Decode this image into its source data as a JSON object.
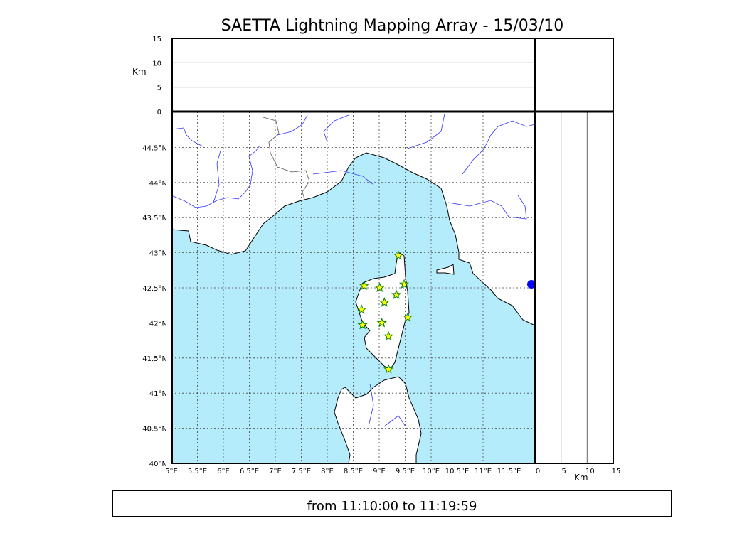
{
  "title": "SAETTA Lightning Mapping Array - 15/03/10",
  "footer": "from 11:10:00 to 11:19:59",
  "colors": {
    "sea": "#b5ecfc",
    "land": "#ffffff",
    "rivers": "#3333ff",
    "borders": "#555555",
    "star_fill": "#ffff00",
    "star_edge": "#008000",
    "extra_point": "#0000ff"
  },
  "chart_data": {
    "type": "scatter",
    "map": {
      "lon_range": [
        5,
        12
      ],
      "lat_range": [
        40,
        45
      ],
      "lon_ticks": [
        "5°E",
        "5.5°E",
        "6°E",
        "6.5°E",
        "7°E",
        "7.5°E",
        "8°E",
        "8.5°E",
        "9°E",
        "9.5°E",
        "10°E",
        "10.5°E",
        "11°E",
        "11.5°E"
      ],
      "lat_ticks": [
        "40°N",
        "40.5°N",
        "41°N",
        "41.5°N",
        "42°N",
        "42.5°N",
        "43°N",
        "43.5°N",
        "44°N",
        "44.5°N"
      ],
      "grid": true
    },
    "altitude_top": {
      "ylabel": "Km",
      "ylim": [
        0,
        15
      ],
      "ticks": [
        "0",
        "5",
        "10",
        "15"
      ]
    },
    "altitude_right": {
      "xlabel": "Km",
      "xlim": [
        0,
        15
      ],
      "ticks": [
        "0",
        "5",
        "10",
        "15"
      ]
    },
    "points": [
      {
        "lon": 9.37,
        "lat": 42.96
      },
      {
        "lon": 8.71,
        "lat": 42.53
      },
      {
        "lon": 9.01,
        "lat": 42.5
      },
      {
        "lon": 9.48,
        "lat": 42.55
      },
      {
        "lon": 9.33,
        "lat": 42.4
      },
      {
        "lon": 9.1,
        "lat": 42.29
      },
      {
        "lon": 8.66,
        "lat": 42.19
      },
      {
        "lon": 9.55,
        "lat": 42.08
      },
      {
        "lon": 9.05,
        "lat": 42.0
      },
      {
        "lon": 8.68,
        "lat": 41.97
      },
      {
        "lon": 9.18,
        "lat": 41.81
      },
      {
        "lon": 9.18,
        "lat": 41.34
      }
    ],
    "extra_point": {
      "lon": 11.95,
      "lat": 42.59
    },
    "marker": "star"
  }
}
